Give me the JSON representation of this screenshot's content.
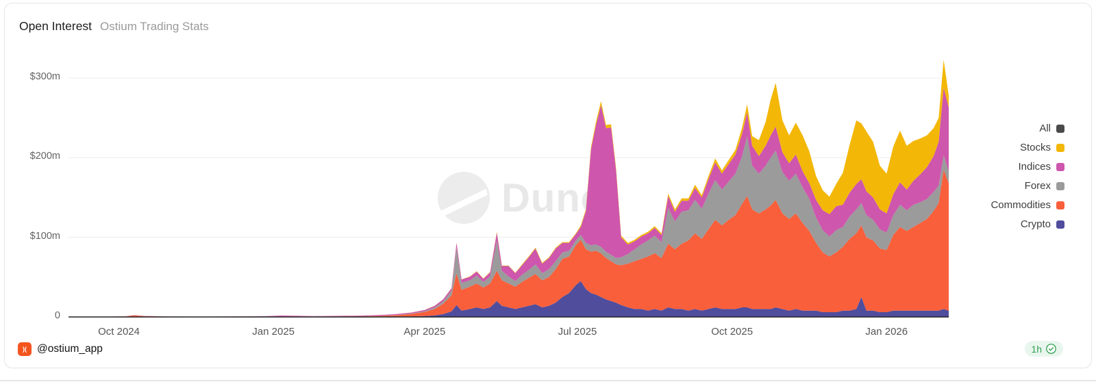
{
  "card": {
    "title": "Open Interest",
    "subtitle": "Ostium Trading Stats"
  },
  "watermark": {
    "text": "Dune"
  },
  "footer": {
    "author_handle": "@ostium_app",
    "logo_glyph": ")(",
    "refresh_age": "1h"
  },
  "chart_data": {
    "type": "area",
    "stacked": true,
    "title": "Open Interest",
    "xlabel": "",
    "ylabel": "",
    "units": "USD millions",
    "ylim": [
      0,
      300
    ],
    "grid": "horizontal",
    "legend_position": "right",
    "y_ticks": [
      {
        "label": "$300m",
        "value": 300
      },
      {
        "label": "$200m",
        "value": 200
      },
      {
        "label": "$100m",
        "value": 100
      },
      {
        "label": "0",
        "value": 0
      }
    ],
    "x_ticks": [
      {
        "label": "Oct 2024",
        "date": "2024-10-01"
      },
      {
        "label": "Jan 2025",
        "date": "2025-01-01"
      },
      {
        "label": "Apr 2025",
        "date": "2025-04-01"
      },
      {
        "label": "Jul 2025",
        "date": "2025-07-01"
      },
      {
        "label": "Oct 2025",
        "date": "2025-10-01"
      },
      {
        "label": "Jan 2026",
        "date": "2026-01-01"
      }
    ],
    "legend": [
      {
        "label": "All",
        "color": "#4a4a4a"
      },
      {
        "label": "Stocks",
        "color": "#f3b708"
      },
      {
        "label": "Indices",
        "color": "#ce56ad"
      },
      {
        "label": "Forex",
        "color": "#9b9b9b"
      },
      {
        "label": "Commodities",
        "color": "#f95f3b"
      },
      {
        "label": "Crypto",
        "color": "#504d9d"
      }
    ],
    "x": [
      "2024-09-01",
      "2024-09-20",
      "2024-10-05",
      "2024-10-10",
      "2024-10-16",
      "2024-11-01",
      "2024-11-20",
      "2024-12-10",
      "2024-12-28",
      "2025-01-06",
      "2025-01-14",
      "2025-01-25",
      "2025-02-08",
      "2025-02-20",
      "2025-03-04",
      "2025-03-14",
      "2025-03-24",
      "2025-04-01",
      "2025-04-07",
      "2025-04-12",
      "2025-04-17",
      "2025-04-20",
      "2025-04-23",
      "2025-04-28",
      "2025-05-02",
      "2025-05-06",
      "2025-05-10",
      "2025-05-14",
      "2025-05-17",
      "2025-05-21",
      "2025-05-25",
      "2025-05-29",
      "2025-06-02",
      "2025-06-06",
      "2025-06-10",
      "2025-06-14",
      "2025-06-18",
      "2025-06-22",
      "2025-06-26",
      "2025-06-30",
      "2025-07-03",
      "2025-07-06",
      "2025-07-09",
      "2025-07-12",
      "2025-07-15",
      "2025-07-18",
      "2025-07-21",
      "2025-07-24",
      "2025-07-27",
      "2025-07-31",
      "2025-08-04",
      "2025-08-08",
      "2025-08-12",
      "2025-08-16",
      "2025-08-20",
      "2025-08-24",
      "2025-08-28",
      "2025-09-01",
      "2025-09-05",
      "2025-09-09",
      "2025-09-13",
      "2025-09-17",
      "2025-09-21",
      "2025-09-25",
      "2025-09-29",
      "2025-10-03",
      "2025-10-07",
      "2025-10-10",
      "2025-10-13",
      "2025-10-17",
      "2025-10-21",
      "2025-10-24",
      "2025-10-27",
      "2025-10-31",
      "2025-11-04",
      "2025-11-08",
      "2025-11-12",
      "2025-11-16",
      "2025-11-20",
      "2025-11-24",
      "2025-11-28",
      "2025-12-02",
      "2025-12-06",
      "2025-12-10",
      "2025-12-14",
      "2025-12-17",
      "2025-12-20",
      "2025-12-24",
      "2025-12-28",
      "2026-01-01",
      "2026-01-05",
      "2026-01-09",
      "2026-01-13",
      "2026-01-17",
      "2026-01-21",
      "2026-01-25",
      "2026-01-29",
      "2026-02-01",
      "2026-02-04",
      "2026-02-07"
    ],
    "series": [
      {
        "name": "Crypto",
        "color": "#504d9d",
        "values": [
          0,
          0,
          0,
          0,
          0,
          0,
          0,
          0,
          0,
          0,
          0,
          0,
          0.1,
          0.2,
          0.3,
          0.5,
          0.8,
          1.2,
          2,
          3.5,
          7,
          15,
          8,
          10,
          12,
          10,
          12,
          20,
          14,
          12,
          10,
          12,
          14,
          16,
          12,
          14,
          18,
          25,
          30,
          40,
          45,
          35,
          30,
          28,
          25,
          22,
          20,
          18,
          15,
          12,
          10,
          10,
          8,
          10,
          8,
          12,
          10,
          10,
          8,
          10,
          8,
          10,
          12,
          10,
          10,
          10,
          12,
          12,
          10,
          10,
          10,
          10,
          12,
          10,
          8,
          10,
          8,
          8,
          8,
          6,
          6,
          6,
          8,
          8,
          10,
          25,
          8,
          8,
          6,
          6,
          8,
          8,
          8,
          8,
          8,
          8,
          8,
          8,
          10,
          8
        ]
      },
      {
        "name": "Commodities",
        "color": "#f95f3b",
        "values": [
          0,
          0.2,
          0.8,
          2,
          1,
          0.4,
          0.3,
          0.4,
          0.5,
          0.5,
          0.6,
          0.5,
          0.6,
          0.7,
          1,
          1.6,
          3,
          5,
          8,
          13,
          20,
          40,
          26,
          28,
          30,
          27,
          30,
          38,
          32,
          30,
          28,
          32,
          35,
          38,
          34,
          36,
          42,
          48,
          46,
          50,
          52,
          50,
          52,
          55,
          55,
          52,
          50,
          48,
          50,
          55,
          60,
          63,
          68,
          70,
          66,
          80,
          75,
          82,
          88,
          95,
          90,
          100,
          110,
          105,
          112,
          118,
          130,
          140,
          125,
          120,
          125,
          130,
          135,
          120,
          115,
          120,
          110,
          100,
          85,
          75,
          70,
          75,
          80,
          90,
          95,
          90,
          92,
          88,
          80,
          78,
          95,
          105,
          100,
          105,
          110,
          115,
          125,
          135,
          175,
          160
        ]
      },
      {
        "name": "Forex",
        "color": "#9b9b9b",
        "values": [
          0,
          0,
          0,
          0.1,
          0.1,
          0,
          0,
          0,
          0,
          0.1,
          0.1,
          0.1,
          0.1,
          0.1,
          0.2,
          0.3,
          0.5,
          1,
          2,
          3,
          6,
          32,
          9,
          8,
          10,
          7,
          9,
          38,
          12,
          9,
          7,
          9,
          10,
          12,
          9,
          10,
          10,
          8,
          7,
          6,
          6,
          8,
          8,
          8,
          8,
          8,
          8,
          8,
          10,
          12,
          15,
          18,
          20,
          22,
          20,
          45,
          35,
          40,
          38,
          42,
          38,
          45,
          50,
          45,
          48,
          52,
          60,
          75,
          55,
          50,
          55,
          60,
          62,
          52,
          48,
          50,
          45,
          40,
          32,
          28,
          25,
          28,
          25,
          28,
          30,
          28,
          28,
          26,
          24,
          22,
          25,
          28,
          26,
          28,
          26,
          25,
          24,
          22,
          18,
          15
        ]
      },
      {
        "name": "Indices",
        "color": "#ce56ad",
        "values": [
          0,
          0,
          0.1,
          0.3,
          0.2,
          0.1,
          0.1,
          0.2,
          0.5,
          1.2,
          0.8,
          0.5,
          0.6,
          0.7,
          0.8,
          1,
          1.2,
          1.5,
          2,
          2.5,
          3,
          6,
          4,
          4.5,
          5,
          4,
          5,
          10,
          6,
          13,
          10,
          12,
          16,
          20,
          12,
          14,
          16,
          12,
          10,
          8,
          10,
          40,
          120,
          150,
          178,
          155,
          160,
          110,
          25,
          12,
          10,
          10,
          9,
          10,
          9,
          15,
          12,
          14,
          12,
          15,
          14,
          18,
          22,
          20,
          22,
          24,
          28,
          30,
          25,
          22,
          25,
          28,
          30,
          25,
          22,
          24,
          20,
          20,
          22,
          25,
          28,
          30,
          28,
          30,
          32,
          30,
          30,
          28,
          25,
          24,
          26,
          28,
          26,
          30,
          35,
          40,
          45,
          55,
          85,
          80
        ]
      },
      {
        "name": "Stocks",
        "color": "#f3b708",
        "values": [
          0,
          0,
          0,
          0,
          0,
          0,
          0,
          0,
          0,
          0,
          0,
          0,
          0,
          0,
          0,
          0,
          0.1,
          0.1,
          0.2,
          0.2,
          0.3,
          0.5,
          0.3,
          0.4,
          0.5,
          0.4,
          0.5,
          1,
          0.5,
          0.5,
          0.5,
          1,
          1,
          1,
          1,
          1,
          1,
          1,
          1,
          1,
          2,
          2,
          3,
          4,
          5,
          4,
          4,
          3,
          2,
          2,
          2,
          2,
          2,
          2,
          2,
          3,
          3,
          3,
          3,
          4,
          3,
          4,
          5,
          4,
          5,
          6,
          8,
          10,
          12,
          20,
          30,
          45,
          55,
          40,
          35,
          40,
          45,
          40,
          30,
          25,
          22,
          28,
          40,
          60,
          80,
          70,
          75,
          70,
          55,
          50,
          60,
          65,
          55,
          50,
          45,
          40,
          35,
          30,
          35,
          15
        ]
      }
    ]
  }
}
